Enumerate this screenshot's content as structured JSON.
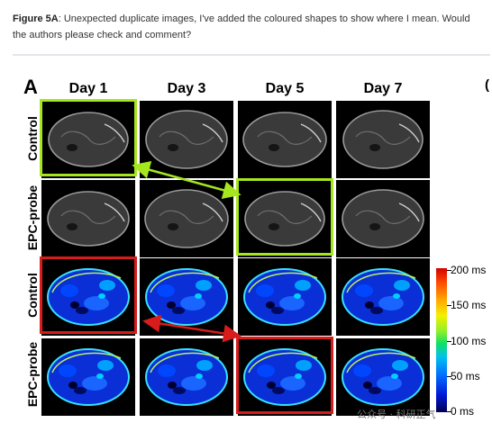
{
  "caption": {
    "label": "Figure 5A",
    "text": ": Unexpected duplicate images, I've added the coloured shapes to show where I mean. Would the authors please check and comment?"
  },
  "figure": {
    "panel_letter": "A",
    "edge_letter": "(",
    "columns": [
      "Day 1",
      "Day 3",
      "Day 5",
      "Day 7"
    ],
    "rows": [
      "Control",
      "EPC-probe",
      "Control",
      "EPC-probe"
    ],
    "colorbar": {
      "labels": [
        "200 ms",
        "150 ms",
        "100 ms",
        "50 ms",
        "0 ms"
      ]
    },
    "highlight_colors": {
      "green": "#a6e61f",
      "red": "#d81b1b"
    }
  },
  "watermark": "公众号 · 科研正气"
}
